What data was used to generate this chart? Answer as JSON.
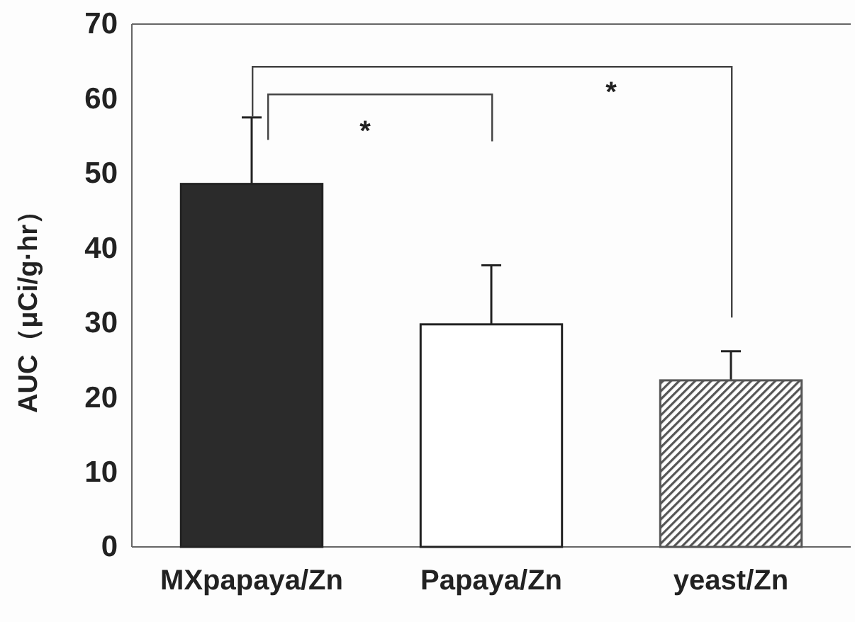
{
  "chart_data": {
    "type": "bar",
    "ylabel": "AUC（μCi/g·hr）",
    "categories": [
      "MXpapaya/Zn",
      "Papaya/Zn",
      "yeast/Zn"
    ],
    "values": [
      48.6,
      29.8,
      22.3
    ],
    "colors": [
      "#2b2b2b",
      "#ffffff",
      "#555555"
    ],
    "errors": [
      [
        48.6,
        57.5
      ],
      [
        29.8,
        37.7
      ],
      [
        22.3,
        26.2
      ]
    ],
    "ylim": [
      0,
      70
    ],
    "yticks": [
      0,
      10,
      20,
      30,
      40,
      50,
      60,
      70
    ],
    "annotations": [
      "*",
      "*"
    ]
  }
}
